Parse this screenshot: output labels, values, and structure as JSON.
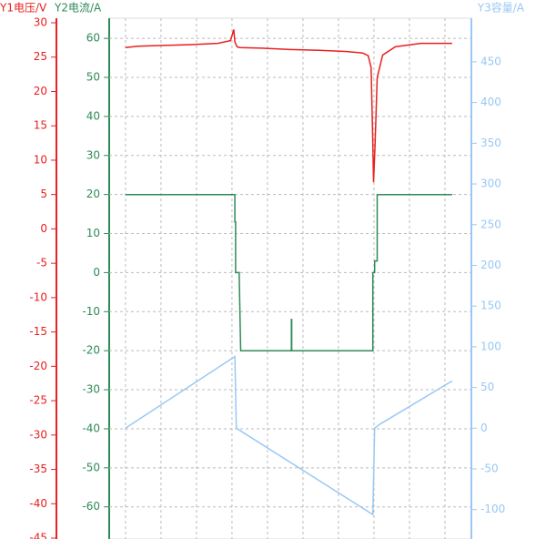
{
  "chart_data": {
    "type": "line",
    "xlim": [
      0,
      100
    ],
    "xticks": [
      4.5,
      14.3,
      24.1,
      33.9,
      43.7,
      53.5,
      63.3,
      73.1,
      82.9,
      92.7
    ],
    "ylim": [
      -45,
      30
    ],
    "yticks": [
      30,
      25,
      20,
      15,
      10,
      5,
      0,
      -5,
      -10,
      -15,
      -20,
      -25,
      -30,
      -35,
      -40,
      -45
    ],
    "y2lim": [
      -68,
      64
    ],
    "y2ticks": [
      60,
      50,
      40,
      30,
      20,
      10,
      0,
      -10,
      -20,
      -30,
      -40,
      -50,
      -60
    ],
    "y3lim": [
      -135,
      498
    ],
    "y3ticks": [
      450,
      400,
      350,
      300,
      250,
      200,
      150,
      100,
      50,
      0,
      -50,
      -100
    ],
    "grid": true,
    "series": [
      {
        "name": "Y1电压/V",
        "color": "#e8201f",
        "axis": "y",
        "x": [
          4.5,
          8,
          15,
          22,
          30,
          33.5,
          34.4,
          34.7,
          35.3,
          36,
          42,
          50,
          58,
          66,
          70,
          71.5,
          72.3,
          72.7,
          73.0,
          73.4,
          74.0,
          75.5,
          79,
          86,
          94.7
        ],
        "values": [
          26.4,
          26.6,
          26.7,
          26.8,
          27.0,
          27.4,
          29.0,
          27.2,
          26.5,
          26.4,
          26.3,
          26.1,
          26.0,
          25.8,
          25.6,
          25.2,
          23.5,
          15,
          6.8,
          12,
          22,
          25.3,
          26.5,
          27.0,
          27.0
        ]
      },
      {
        "name": "Y2电流/A",
        "color": "#2e8b57",
        "axis": "y2",
        "x": [
          4.5,
          34.7,
          34.7,
          34.9,
          34.9,
          35.9,
          35.9,
          36.3,
          50.3,
          50.3,
          50.4,
          50.4,
          72.8,
          72.8,
          73.3,
          73.3,
          74.0,
          74.0,
          94.7
        ],
        "values": [
          20,
          20,
          13,
          13,
          0,
          0,
          -1,
          -20,
          -20,
          -12,
          -12,
          -20,
          -20,
          0,
          0,
          3,
          3,
          20,
          20
        ]
      },
      {
        "name": "Y3容量/A",
        "color": "#99c8f5",
        "axis": "y3",
        "x": [
          4.5,
          34.7,
          35.1,
          72.8,
          73.3,
          74.8,
          94.7
        ],
        "values": [
          0,
          88,
          0,
          -106,
          0,
          5,
          58
        ]
      }
    ]
  }
}
